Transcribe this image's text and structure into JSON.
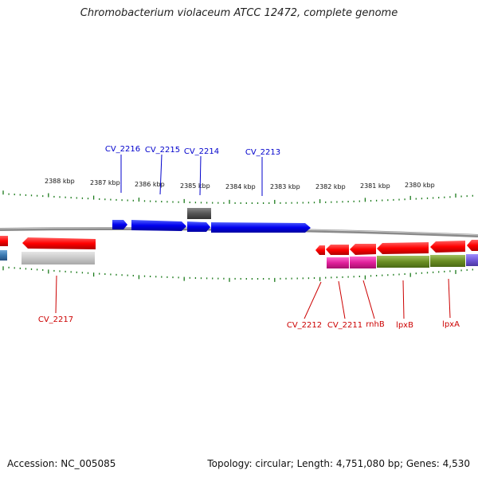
{
  "title": "Chromobacterium violaceum ATCC 12472, complete genome",
  "footer": {
    "accession": "Accession: NC_005085",
    "stats": "Topology: circular; Length: 4,751,080 bp; Genes: 4,530"
  },
  "ruler_labels": [
    "2388 kbp",
    "2387 kbp",
    "2386 kbp",
    "2385 kbp",
    "2384 kbp",
    "2383 kbp",
    "2382 kbp",
    "2381 kbp",
    "2380 kbp"
  ],
  "labels": {
    "top": [
      "CV_2216",
      "CV_2215",
      "CV_2214",
      "CV_2213"
    ],
    "bottom": [
      "CV_2217",
      "CV_2212",
      "CV_2211",
      "rnhB",
      "lpxB",
      "lpxA"
    ]
  },
  "colors": {
    "forward_gene": "#0000ff",
    "reverse_gene": "#ff0000",
    "label_blue": "#0000cc",
    "label_red": "#cc0000",
    "tick_green": "#1a7a1a",
    "backbone": "#888888"
  }
}
